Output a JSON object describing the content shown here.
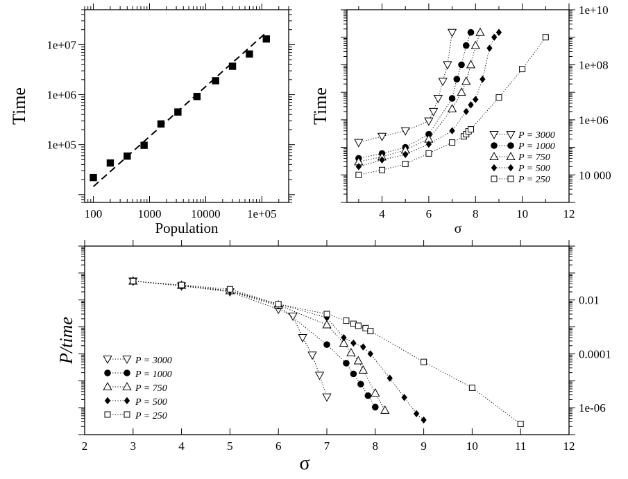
{
  "chart_data": [
    {
      "id": "p1",
      "type": "scatter",
      "xlabel": "Population",
      "ylabel": "Time",
      "xscale": "log",
      "yscale": "log",
      "xlim": [
        70,
        300000
      ],
      "ylim": [
        7000,
        50000000
      ],
      "xticks": [
        100,
        1000,
        10000,
        100000
      ],
      "xtick_labels": [
        "100",
        "1000",
        "10000",
        "1e+05"
      ],
      "yticks": [
        100000,
        1000000,
        10000000
      ],
      "ytick_labels": [
        "1e+05",
        "1e+06",
        "1e+07"
      ],
      "y2ticks": [
        100000,
        1000000,
        10000000
      ],
      "top_ticks": true,
      "right_ticks": true,
      "series": [
        {
          "marker": "filled-square",
          "x": [
            100,
            200,
            400,
            800,
            1600,
            3200,
            7000,
            15000,
            30000,
            60000,
            120000
          ],
          "y": [
            22000,
            43000,
            59000,
            97000,
            260000,
            450000,
            920000,
            1900000,
            3700000,
            6500000,
            13000000
          ]
        }
      ],
      "fit_line": {
        "x": [
          100,
          120000
        ],
        "y": [
          14500,
          17500000
        ]
      }
    },
    {
      "id": "p2",
      "type": "line",
      "xlabel": "σ",
      "ylabel": "Time",
      "xlim": [
        2.5,
        12
      ],
      "ylim": [
        1000,
        10000000000
      ],
      "yscale": "log",
      "xticks": [
        4,
        6,
        8,
        10,
        12
      ],
      "xtick_labels": [
        "4",
        "6",
        "8",
        "10",
        "12"
      ],
      "yticks": [
        10000,
        1000000,
        100000000,
        10000000000
      ],
      "ytick_labels": [
        "10 000",
        "1e+06",
        "1e+08",
        "1e+10"
      ],
      "left_ticks_unlabeled": [
        10000,
        1000000,
        100000000,
        10000000000
      ],
      "legend": "bottom-right",
      "series": [
        {
          "name": "P = 3000",
          "marker": "open-triangle-down",
          "x": [
            3,
            4,
            5,
            6,
            6.2,
            6.4,
            6.6,
            6.8,
            7
          ],
          "y": [
            150000,
            250000,
            400000,
            900000,
            2000000,
            6000000,
            25000000,
            100000000,
            1500000000
          ]
        },
        {
          "name": "P = 1000",
          "marker": "filled-circle",
          "x": [
            3,
            4,
            5,
            6,
            7,
            7.2,
            7.4,
            7.6,
            7.8
          ],
          "y": [
            40000,
            60000,
            100000,
            300000,
            6000000,
            30000000,
            100000000,
            500000000,
            1500000000
          ]
        },
        {
          "name": "P = 750",
          "marker": "open-triangle-up",
          "x": [
            3,
            4,
            5,
            6,
            7,
            7.4,
            7.6,
            7.8,
            8,
            8.2
          ],
          "y": [
            30000,
            45000,
            80000,
            200000,
            2500000,
            10000000,
            25000000,
            100000000,
            500000000,
            1500000000
          ]
        },
        {
          "name": "P = 500",
          "marker": "filled-diamond",
          "x": [
            3,
            4,
            5,
            6,
            7,
            7.6,
            7.8,
            8,
            8.3,
            8.6,
            8.8,
            9
          ],
          "y": [
            20000,
            35000,
            55000,
            130000,
            400000,
            2000000,
            3500000,
            5500000,
            30000000,
            400000000,
            1000000000,
            1500000000
          ]
        },
        {
          "name": "P = 250",
          "marker": "open-square",
          "x": [
            3,
            4,
            5,
            6,
            7,
            7.5,
            7.6,
            7.7,
            7.8,
            9,
            10,
            11
          ],
          "y": [
            10000,
            15000,
            25000,
            60000,
            150000,
            250000,
            300000,
            380000,
            450000,
            6500000,
            70000000,
            1000000000
          ]
        }
      ]
    },
    {
      "id": "p3",
      "type": "line",
      "xlabel": "σ",
      "ylabel": "P/time",
      "xlim": [
        2,
        12
      ],
      "ylim": [
        1e-07,
        1
      ],
      "yscale": "log",
      "xticks": [
        2,
        3,
        4,
        5,
        6,
        7,
        8,
        9,
        10,
        11,
        12
      ],
      "xtick_labels": [
        "2",
        "3",
        "4",
        "5",
        "6",
        "7",
        "8",
        "9",
        "10",
        "11",
        "12"
      ],
      "yticks": [
        1e-06,
        0.0001,
        0.01
      ],
      "ytick_labels": [
        "1e-06",
        "0.0001",
        "0.01"
      ],
      "legend": "bottom-left",
      "series": [
        {
          "name": "P = 3000",
          "marker": "open-triangle-down",
          "x": [
            3,
            4,
            5,
            6,
            6.3,
            6.5,
            6.7,
            6.85,
            7
          ],
          "y": [
            0.05,
            0.033,
            0.02,
            0.0045,
            0.0025,
            0.0004,
            9e-05,
            1.6e-05,
            2.5e-06
          ]
        },
        {
          "name": "P = 1000",
          "marker": "filled-circle",
          "x": [
            3,
            4,
            5,
            6,
            7,
            7.4,
            7.55,
            7.7,
            7.85,
            8
          ],
          "y": [
            0.05,
            0.034,
            0.021,
            0.006,
            0.00022,
            4.5e-05,
            1.8e-05,
            7.5e-06,
            2.8e-06,
            1.05e-06
          ]
        },
        {
          "name": "P = 750",
          "marker": "open-triangle-up",
          "x": [
            3,
            4,
            5,
            6,
            7,
            7.35,
            7.5,
            7.65,
            7.75,
            8,
            8.2
          ],
          "y": [
            0.05,
            0.035,
            0.022,
            0.0065,
            0.0012,
            0.00025,
            0.00011,
            5.5e-05,
            2.5e-05,
            3.5e-06,
            8e-07
          ]
        },
        {
          "name": "P = 500",
          "marker": "filled-diamond",
          "x": [
            3,
            4,
            5,
            6,
            7,
            7.35,
            7.55,
            7.75,
            7.9,
            8.3,
            8.6,
            8.85,
            9
          ],
          "y": [
            0.05,
            0.034,
            0.022,
            0.007,
            0.0022,
            0.0004,
            0.00025,
            0.00018,
            0.0001,
            1.25e-05,
            2.4e-06,
            6e-07,
            3.5e-07
          ]
        },
        {
          "name": "P = 250",
          "marker": "open-square",
          "x": [
            3,
            4,
            5,
            6,
            7,
            7.4,
            7.55,
            7.65,
            7.8,
            7.9,
            9,
            10,
            11
          ],
          "y": [
            0.05,
            0.036,
            0.025,
            0.007,
            0.003,
            0.0017,
            0.0013,
            0.0011,
            0.0009,
            0.0007,
            5e-05,
            5.5e-06,
            2.5e-07
          ]
        }
      ]
    }
  ]
}
